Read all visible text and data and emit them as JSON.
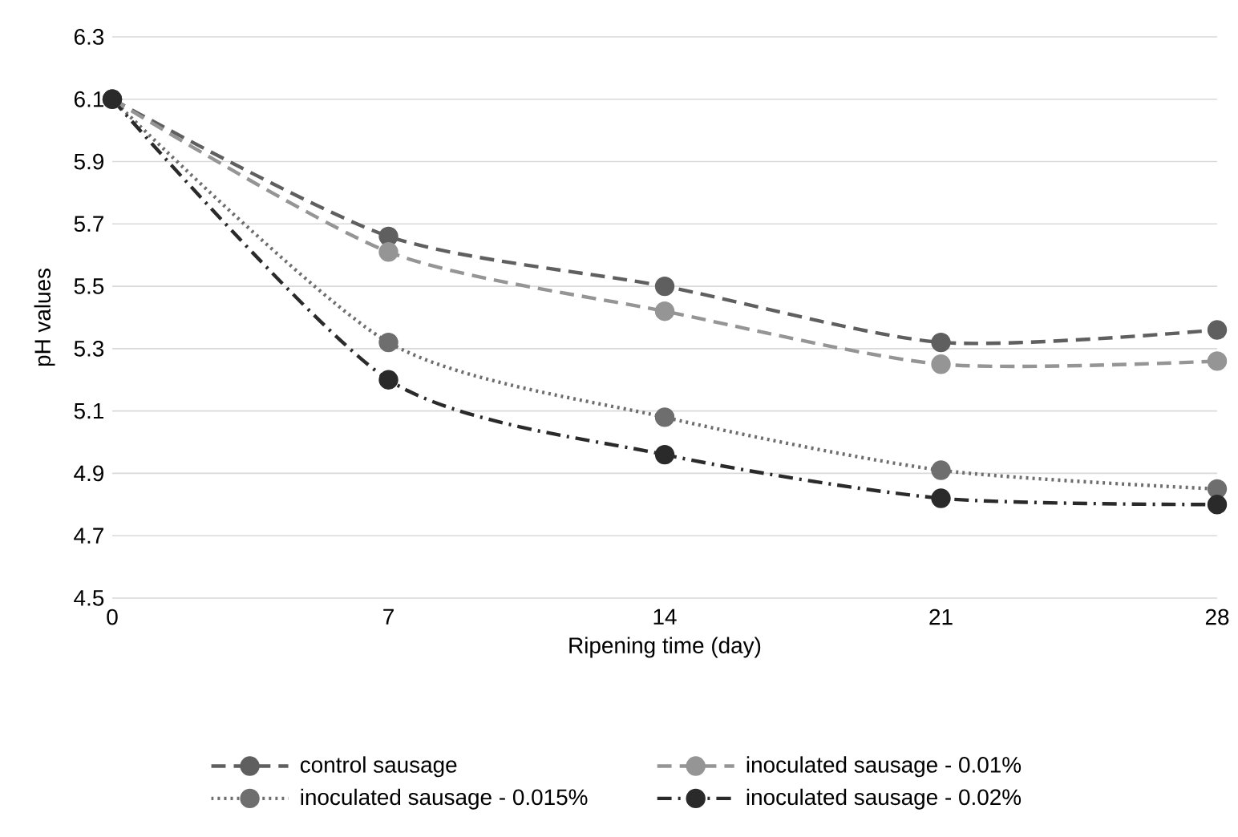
{
  "chart_data": {
    "type": "line",
    "xlabel": "Ripening time (day)",
    "ylabel": "pH values",
    "x": [
      0,
      7,
      14,
      21,
      28
    ],
    "xlim": [
      0,
      28
    ],
    "xticks": [
      0,
      7,
      14,
      21,
      28
    ],
    "ylim": [
      4.5,
      6.3
    ],
    "yticks": [
      4.5,
      4.7,
      4.9,
      5.1,
      5.3,
      5.5,
      5.7,
      5.9,
      6.1,
      6.3
    ],
    "grid": "y",
    "legend": "bottom",
    "marker": "circle",
    "series": [
      {
        "name": "control sausage",
        "color": "#5f5f5f",
        "line_style": "dashed",
        "values": [
          6.1,
          5.66,
          5.5,
          5.32,
          5.36
        ]
      },
      {
        "name": "inoculated sausage - 0.01%",
        "color": "#959595",
        "line_style": "dashed",
        "values": [
          6.1,
          5.61,
          5.42,
          5.25,
          5.26
        ]
      },
      {
        "name": "inoculated sausage - 0.015%",
        "color": "#6e6e6e",
        "line_style": "dotted",
        "values": [
          6.1,
          5.32,
          5.08,
          4.91,
          4.85
        ]
      },
      {
        "name": "inoculated sausage - 0.02%",
        "color": "#2a2a2a",
        "line_style": "dashdot",
        "values": [
          6.1,
          5.2,
          4.96,
          4.82,
          4.8
        ]
      }
    ]
  }
}
